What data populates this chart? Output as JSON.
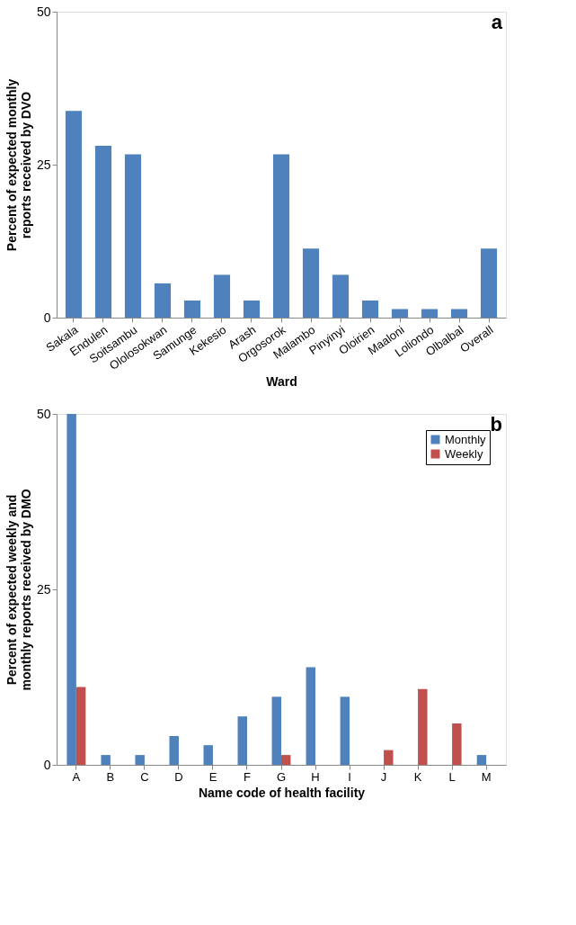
{
  "chart_data": [
    {
      "type": "bar",
      "annotations": [
        "a"
      ],
      "xlabel": "Ward",
      "ylabel": "Percent of expected monthly reports received by DVO",
      "categories": [
        "Sakala",
        "Endulen",
        "Soitsambu",
        "Ololosokwan",
        "Samunge",
        "Kekesio",
        "Arash",
        "Orgosorok",
        "Malambo",
        "Pinyinyi",
        "Oloirien",
        "Maaloni",
        "Loliondo",
        "Olbalbal",
        "Overall"
      ],
      "series": [
        {
          "color": "#4f81bd",
          "values": [
            33.8,
            28.1,
            26.7,
            5.6,
            2.8,
            7.0,
            2.8,
            26.7,
            11.3,
            7.0,
            2.8,
            1.4,
            1.4,
            1.4,
            11.3
          ]
        }
      ],
      "ylim": [
        0,
        50
      ],
      "yticks": [
        0,
        25,
        50
      ],
      "grid": false
    },
    {
      "type": "bar",
      "annotations": [
        "b"
      ],
      "xlabel": "Name code of health facility",
      "ylabel": "Percent of expected weekly and monthly reports received by DMO",
      "categories": [
        "A",
        "B",
        "C",
        "D",
        "E",
        "F",
        "G",
        "H",
        "I",
        "J",
        "K",
        "L",
        "M"
      ],
      "series": [
        {
          "name": "Monthly",
          "color": "#4f81bd",
          "values": [
            50,
            1.4,
            1.4,
            4.1,
            2.8,
            6.9,
            9.7,
            13.9,
            9.7,
            null,
            null,
            null,
            1.4
          ]
        },
        {
          "name": "Weekly",
          "color": "#c0504d",
          "values": [
            11.1,
            null,
            null,
            null,
            null,
            null,
            1.4,
            null,
            null,
            2.1,
            10.8,
            5.9,
            null
          ]
        }
      ],
      "ylim": [
        0,
        50
      ],
      "yticks": [
        0,
        25,
        50
      ],
      "grid": false,
      "legend": "top right"
    }
  ]
}
